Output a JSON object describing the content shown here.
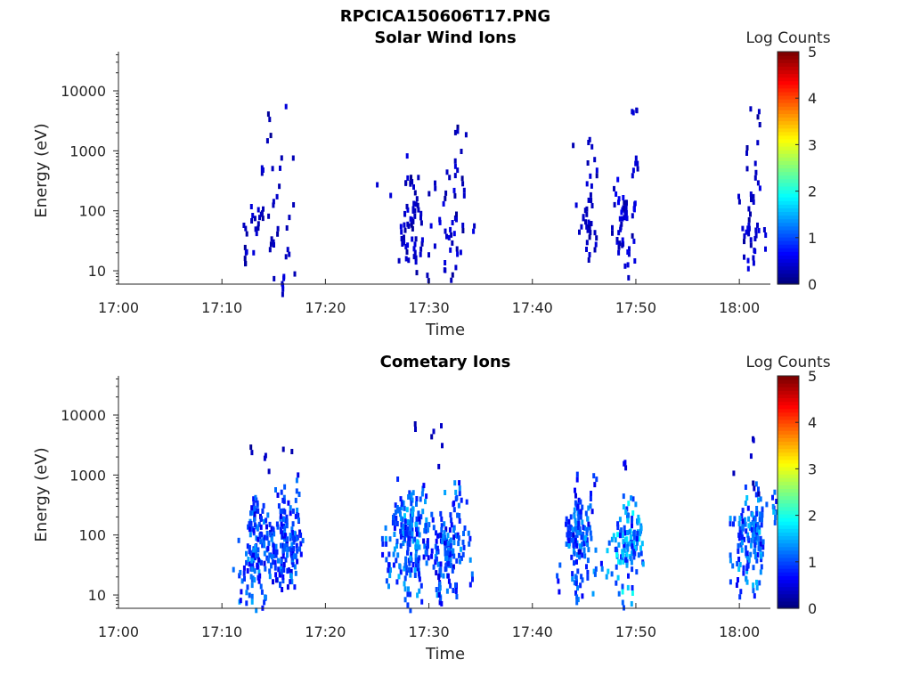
{
  "figure_title": "RPCICA150606T17.PNG",
  "colors": {
    "axis": "#262626",
    "background": "#ffffff",
    "colormap": "jet"
  },
  "chart_data": [
    {
      "type": "heatmap",
      "title": "Solar Wind Ions",
      "xlabel": "Time",
      "ylabel": "Energy (eV)",
      "x_ticks": [
        "17:00",
        "17:10",
        "17:20",
        "17:30",
        "17:40",
        "17:50",
        "18:00"
      ],
      "y_ticks": [
        "10",
        "100",
        "1000",
        "10000"
      ],
      "y_scale": "log",
      "ylim": [
        6,
        45000
      ],
      "xlim_minutes": [
        0,
        63
      ],
      "colorbar": {
        "label": "Log Counts",
        "ticks": [
          "0",
          "1",
          "2",
          "3",
          "4",
          "5"
        ],
        "range": [
          0,
          5
        ]
      },
      "clusters": [
        {
          "t": 13.0,
          "dt": 1.1,
          "e": 45,
          "spread": 0.35,
          "level": 0.2,
          "density": 0.6,
          "n": 14
        },
        {
          "t": 15.8,
          "dt": 1.8,
          "e": 120,
          "spread": 0.5,
          "level": 0.15,
          "density": 0.3,
          "n": 22
        },
        {
          "t": 15.8,
          "dt": 0.1,
          "e": 8,
          "spread": 0.1,
          "level": 0.3,
          "density": 0.9,
          "n": 3
        },
        {
          "t": 16.0,
          "dt": 0.1,
          "e": 5800,
          "spread": 0.02,
          "level": 0.2,
          "density": 1.0,
          "n": 1
        },
        {
          "t": 14.5,
          "dt": 0.2,
          "e": 1600,
          "spread": 0.02,
          "level": 0.2,
          "density": 1.0,
          "n": 1
        },
        {
          "t": 14.0,
          "dt": 0.4,
          "e": 550,
          "spread": 0.1,
          "level": 0.2,
          "density": 1.0,
          "n": 2
        },
        {
          "t": 28.0,
          "dt": 1.5,
          "e": 70,
          "spread": 0.45,
          "level": 0.25,
          "density": 0.6,
          "n": 36
        },
        {
          "t": 32.0,
          "dt": 1.5,
          "e": 55,
          "spread": 0.45,
          "level": 0.25,
          "density": 0.55,
          "n": 28
        },
        {
          "t": 28.8,
          "dt": 1.2,
          "e": 400,
          "spread": 0.3,
          "level": 0.15,
          "density": 0.35,
          "n": 6
        },
        {
          "t": 33.0,
          "dt": 0.6,
          "e": 1000,
          "spread": 0.3,
          "level": 0.15,
          "density": 0.4,
          "n": 5
        },
        {
          "t": 45.0,
          "dt": 1.2,
          "e": 60,
          "spread": 0.45,
          "level": 0.25,
          "density": 0.55,
          "n": 24
        },
        {
          "t": 45.2,
          "dt": 1.0,
          "e": 700,
          "spread": 0.35,
          "level": 0.15,
          "density": 0.35,
          "n": 5
        },
        {
          "t": 49.0,
          "dt": 1.5,
          "e": 80,
          "spread": 0.5,
          "level": 0.3,
          "density": 0.6,
          "n": 34
        },
        {
          "t": 49.5,
          "dt": 0.6,
          "e": 5000,
          "spread": 0.05,
          "level": 0.25,
          "density": 0.9,
          "n": 4
        },
        {
          "t": 61.0,
          "dt": 1.4,
          "e": 80,
          "spread": 0.5,
          "level": 0.25,
          "density": 0.5,
          "n": 24
        },
        {
          "t": 61.4,
          "dt": 1.1,
          "e": 900,
          "spread": 0.5,
          "level": 0.15,
          "density": 0.35,
          "n": 8
        }
      ]
    },
    {
      "type": "heatmap",
      "title": "Cometary Ions",
      "xlabel": "Time",
      "ylabel": "Energy (eV)",
      "x_ticks": [
        "17:00",
        "17:10",
        "17:20",
        "17:30",
        "17:40",
        "17:50",
        "18:00"
      ],
      "y_ticks": [
        "10",
        "100",
        "1000",
        "10000"
      ],
      "y_scale": "log",
      "ylim": [
        6,
        45000
      ],
      "xlim_minutes": [
        0,
        63
      ],
      "colorbar": {
        "label": "Log Counts",
        "ticks": [
          "0",
          "1",
          "2",
          "3",
          "4",
          "5"
        ],
        "range": [
          0,
          5
        ]
      },
      "clusters": [
        {
          "t": 13.0,
          "dt": 1.4,
          "e": 60,
          "spread": 0.45,
          "level": 0.9,
          "density": 0.9,
          "n": 60
        },
        {
          "t": 15.7,
          "dt": 2.0,
          "e": 90,
          "spread": 0.45,
          "level": 0.85,
          "density": 0.9,
          "n": 80
        },
        {
          "t": 14.8,
          "dt": 2.4,
          "e": 2200,
          "spread": 0.12,
          "level": 0.15,
          "density": 0.35,
          "n": 6
        },
        {
          "t": 27.8,
          "dt": 1.8,
          "e": 90,
          "spread": 0.45,
          "level": 1.0,
          "density": 0.9,
          "n": 80
        },
        {
          "t": 31.8,
          "dt": 1.8,
          "e": 80,
          "spread": 0.45,
          "level": 0.9,
          "density": 0.9,
          "n": 70
        },
        {
          "t": 30.5,
          "dt": 1.6,
          "e": 4000,
          "spread": 0.2,
          "level": 0.15,
          "density": 0.4,
          "n": 5
        },
        {
          "t": 44.5,
          "dt": 1.6,
          "e": 90,
          "spread": 0.45,
          "level": 0.9,
          "density": 0.9,
          "n": 70
        },
        {
          "t": 49.0,
          "dt": 1.6,
          "e": 80,
          "spread": 0.35,
          "level": 1.2,
          "density": 0.9,
          "n": 60
        },
        {
          "t": 48.8,
          "dt": 0.2,
          "e": 1700,
          "spread": 0.02,
          "level": 0.3,
          "density": 1.0,
          "n": 2
        },
        {
          "t": 61.0,
          "dt": 1.6,
          "e": 80,
          "spread": 0.45,
          "level": 1.0,
          "density": 0.9,
          "n": 60
        },
        {
          "t": 60.8,
          "dt": 1.0,
          "e": 1000,
          "spread": 0.4,
          "level": 0.15,
          "density": 0.4,
          "n": 6
        }
      ]
    }
  ]
}
